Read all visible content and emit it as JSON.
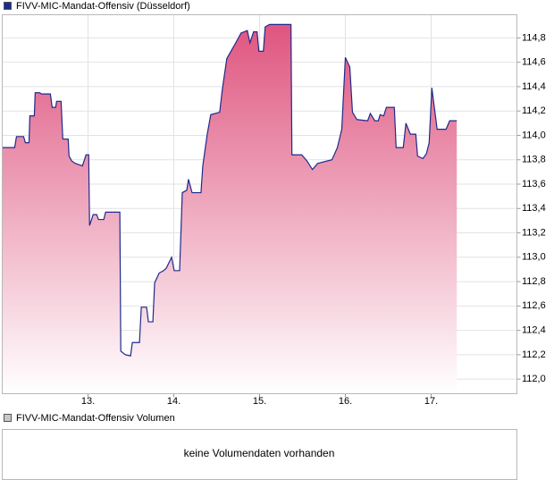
{
  "chart_data": [
    {
      "type": "area",
      "series": [
        {
          "name": "FIVV-MIC-Mandat-Offensiv (Düsseldorf)",
          "color": "#1f2a8c",
          "fill_top": "#df5580",
          "fill_bottom": "#ffffff",
          "values": [
            113.9,
            113.9,
            113.99,
            113.99,
            113.94,
            113.94,
            114.16,
            114.16,
            114.35,
            114.35,
            114.34,
            114.34,
            114.23,
            114.23,
            114.28,
            114.28,
            113.97,
            113.97,
            113.83,
            113.79,
            113.77,
            113.75,
            113.84,
            113.84,
            113.26,
            113.35,
            113.35,
            113.31,
            113.31,
            113.37,
            113.37,
            112.23,
            112.2,
            112.19,
            112.3,
            112.3,
            112.59,
            112.59,
            112.47,
            112.47,
            112.79,
            112.87,
            112.89,
            112.91,
            113.0,
            112.89,
            112.89,
            113.53,
            113.55,
            113.64,
            113.53,
            113.53,
            113.75,
            114.01,
            114.17,
            114.19,
            114.38,
            114.63,
            114.76,
            114.84,
            114.86,
            114.76,
            114.85,
            114.85,
            114.69,
            114.69,
            114.89,
            114.91,
            114.91,
            113.84,
            113.84,
            113.79,
            113.72,
            113.77,
            113.8,
            113.9,
            114.05,
            114.64,
            114.56,
            114.19,
            114.13,
            114.12,
            114.18,
            114.12,
            114.12,
            114.17,
            114.16,
            114.23,
            114.23,
            113.9,
            113.9,
            114.1,
            114.01,
            114.01,
            113.83,
            113.81,
            113.85,
            113.94,
            114.39,
            114.05,
            114.05,
            114.12,
            114.12
          ]
        }
      ],
      "x": [
        12.0,
        12.145,
        12.166,
        12.249,
        12.27,
        12.312,
        12.322,
        12.374,
        12.384,
        12.436,
        12.457,
        12.561,
        12.582,
        12.623,
        12.634,
        12.686,
        12.706,
        12.769,
        12.779,
        12.81,
        12.852,
        12.935,
        12.977,
        13.008,
        13.018,
        13.06,
        13.101,
        13.122,
        13.184,
        13.205,
        13.371,
        13.382,
        13.434,
        13.496,
        13.517,
        13.6,
        13.621,
        13.683,
        13.704,
        13.756,
        13.777,
        13.829,
        13.881,
        13.912,
        13.974,
        14.005,
        14.068,
        14.099,
        14.151,
        14.171,
        14.213,
        14.317,
        14.338,
        14.39,
        14.431,
        14.535,
        14.566,
        14.618,
        14.722,
        14.784,
        14.857,
        14.888,
        14.93,
        14.971,
        14.992,
        15.044,
        15.065,
        15.117,
        15.366,
        15.377,
        15.491,
        15.553,
        15.616,
        15.678,
        15.844,
        15.907,
        15.958,
        16.0,
        16.052,
        16.083,
        16.135,
        16.26,
        16.291,
        16.343,
        16.384,
        16.405,
        16.447,
        16.478,
        16.571,
        16.592,
        16.675,
        16.706,
        16.758,
        16.821,
        16.842,
        16.904,
        16.945,
        16.977,
        17.008,
        17.07,
        17.174,
        17.216,
        17.299
      ],
      "xlim": [
        12,
        18
      ],
      "xticks": [
        {
          "value": 13,
          "label": "13."
        },
        {
          "value": 14,
          "label": "14."
        },
        {
          "value": 15,
          "label": "15."
        },
        {
          "value": 16,
          "label": "16."
        },
        {
          "value": 17,
          "label": "17."
        }
      ],
      "ylim": [
        111.88,
        114.99
      ],
      "yticks": [
        {
          "value": 112.0,
          "label": "112,0"
        },
        {
          "value": 112.2,
          "label": "112,2"
        },
        {
          "value": 112.4,
          "label": "112,4"
        },
        {
          "value": 112.6,
          "label": "112,6"
        },
        {
          "value": 112.8,
          "label": "112,8"
        },
        {
          "value": 113.0,
          "label": "113,0"
        },
        {
          "value": 113.2,
          "label": "113,2"
        },
        {
          "value": 113.4,
          "label": "113,4"
        },
        {
          "value": 113.6,
          "label": "113,6"
        },
        {
          "value": 113.8,
          "label": "113,8"
        },
        {
          "value": 114.0,
          "label": "114,0"
        },
        {
          "value": 114.2,
          "label": "114,2"
        },
        {
          "value": 114.4,
          "label": "114,4"
        },
        {
          "value": 114.6,
          "label": "114,6"
        },
        {
          "value": 114.8,
          "label": "114,8"
        }
      ],
      "grid": true
    },
    {
      "type": "bar",
      "series": [
        {
          "name": "FIVV-MIC-Mandat-Offensiv Volumen",
          "color": "#c8c8c8"
        }
      ],
      "note": "keine Volumendaten vorhanden"
    }
  ]
}
